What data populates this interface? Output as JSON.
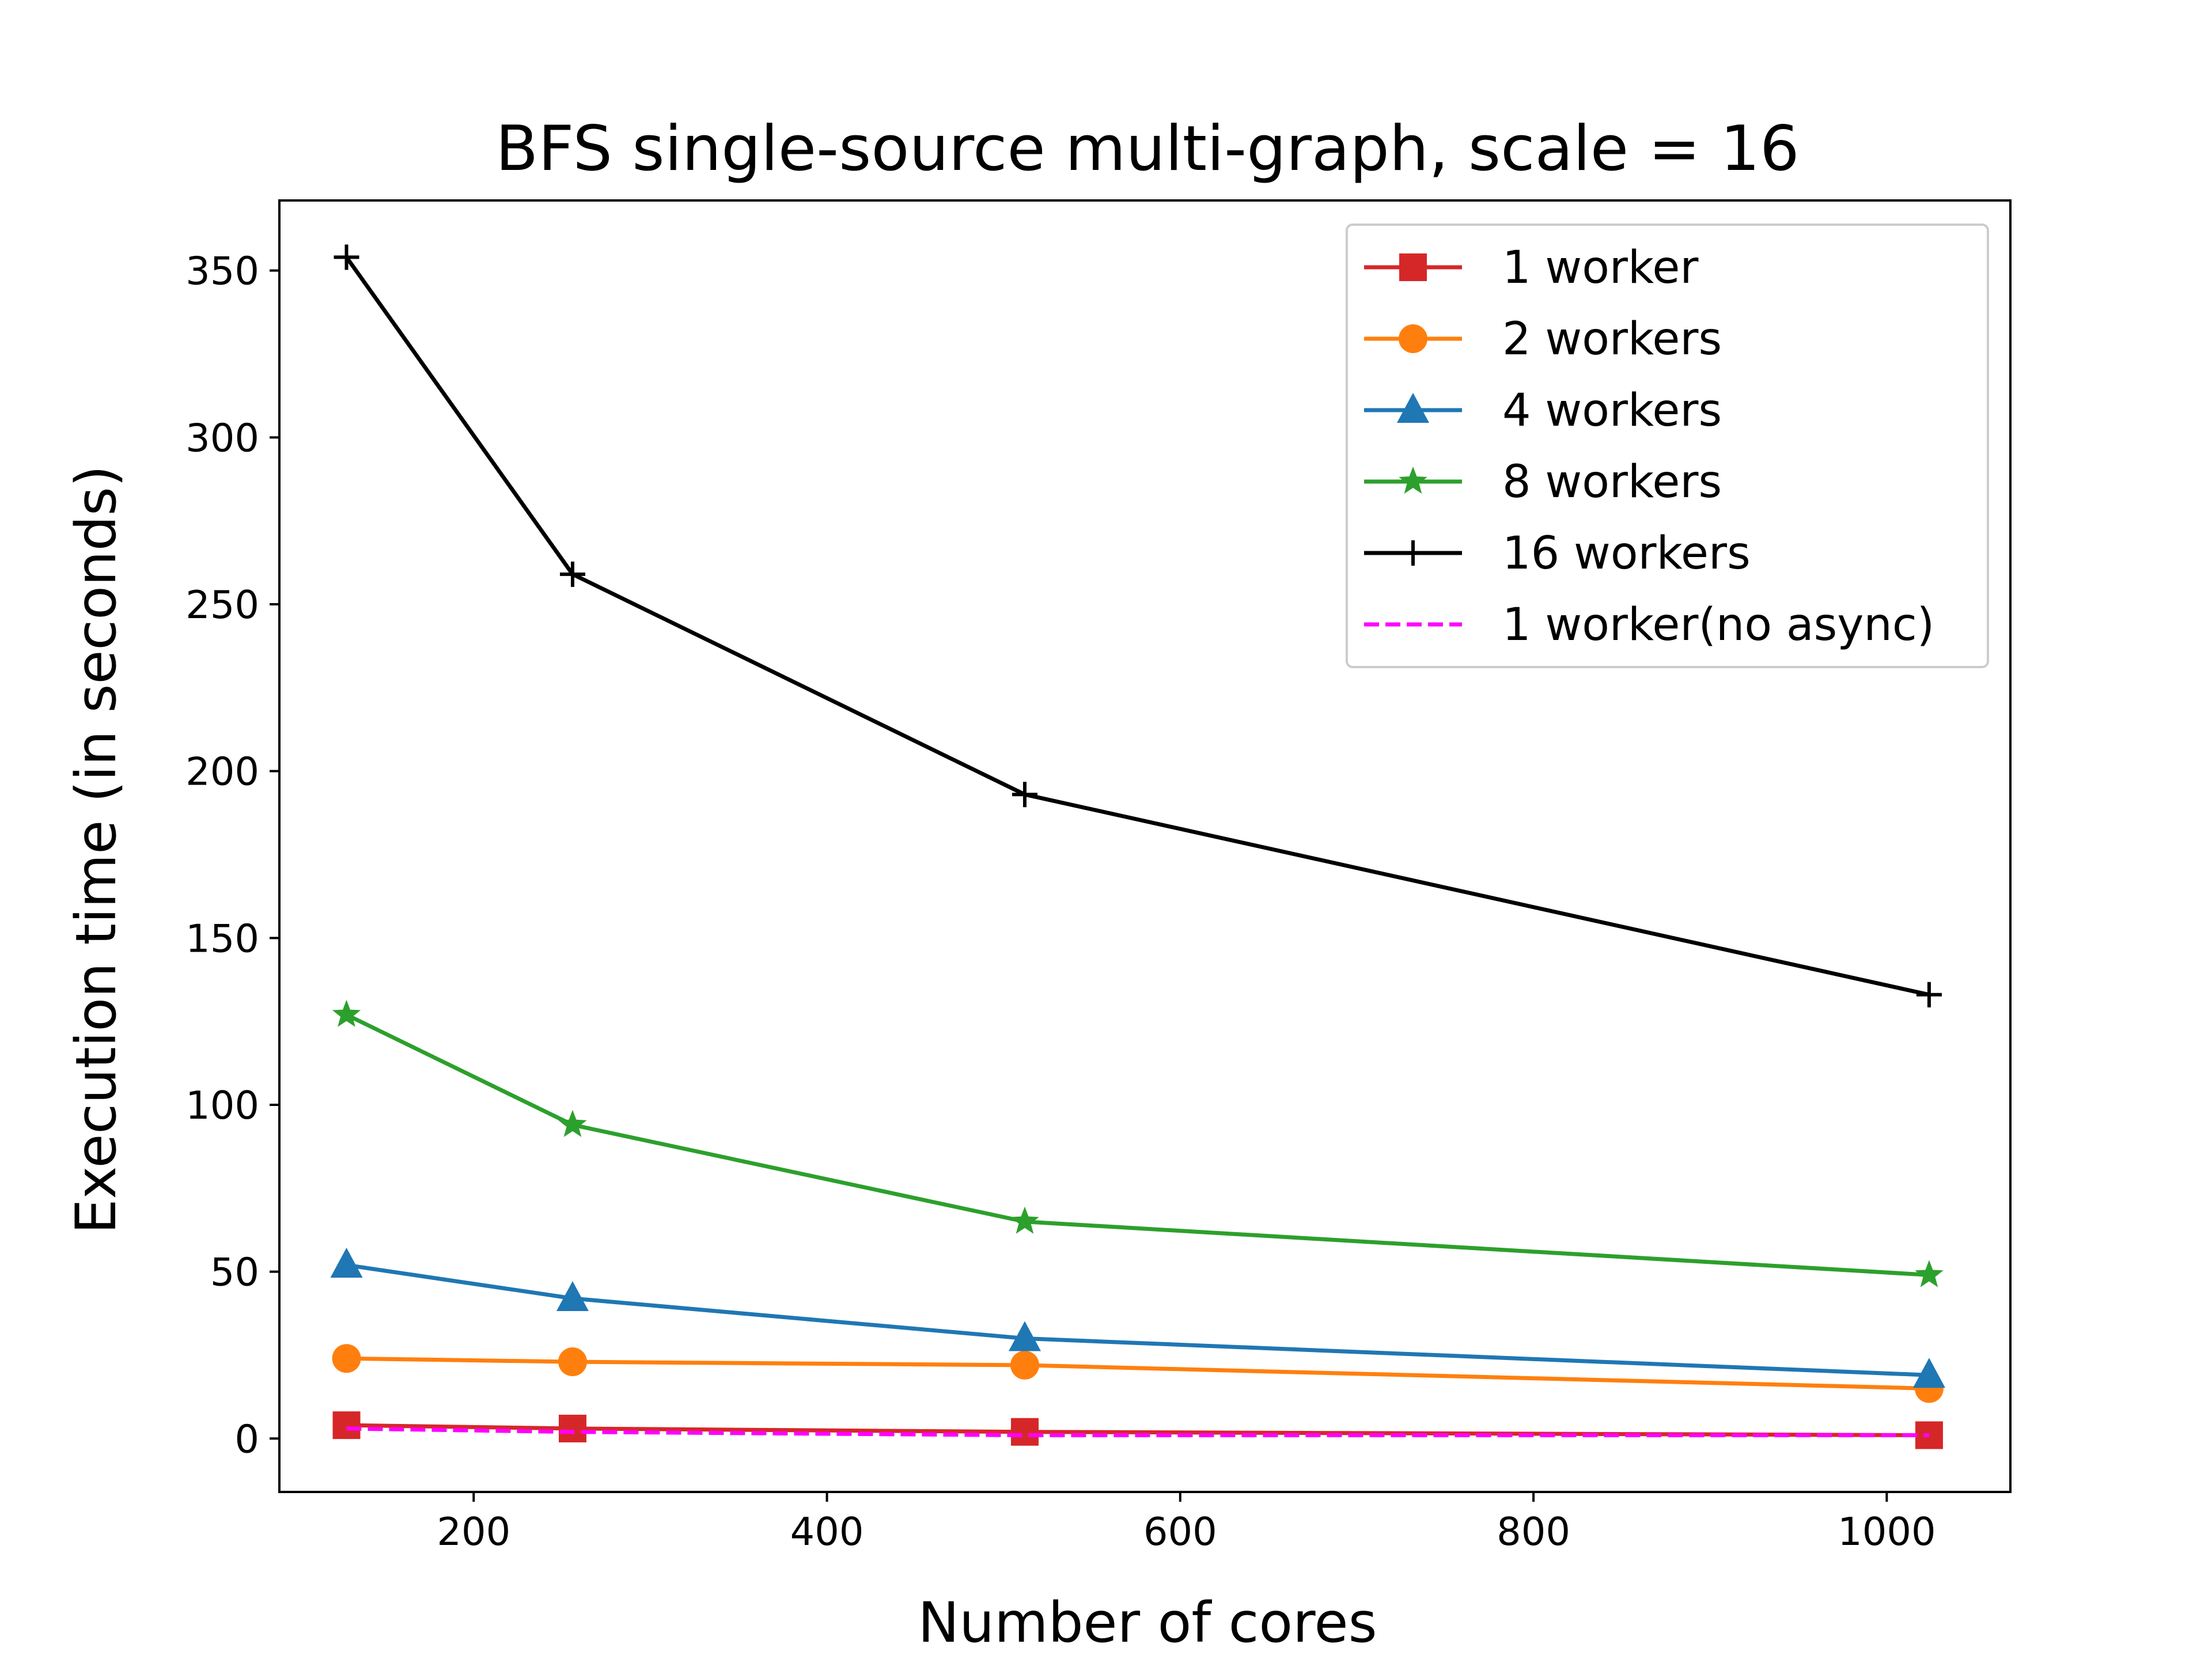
{
  "chart_data": {
    "type": "line",
    "title": "BFS single-source multi-graph, scale = 16",
    "xlabel": "Number of cores",
    "ylabel": "Execution time (in seconds)",
    "x": [
      128,
      256,
      512,
      1024
    ],
    "xlim": [
      90,
      1070
    ],
    "ylim": [
      -16,
      371
    ],
    "xticks": [
      200,
      400,
      600,
      800,
      1000
    ],
    "yticks": [
      0,
      50,
      100,
      150,
      200,
      250,
      300,
      350
    ],
    "xtick_labels": [
      "200",
      "400",
      "600",
      "800",
      "1000"
    ],
    "ytick_labels": [
      "0",
      "50",
      "100",
      "150",
      "200",
      "250",
      "300",
      "350"
    ],
    "grid": false,
    "legend_position": "top-right",
    "series": [
      {
        "name": "1 worker",
        "values": [
          4,
          3,
          2,
          1
        ],
        "color": "#d62728",
        "marker": "square",
        "dash": "solid"
      },
      {
        "name": "2 workers",
        "values": [
          24,
          23,
          22,
          15
        ],
        "color": "#ff7f0e",
        "marker": "circle",
        "dash": "solid"
      },
      {
        "name": "4 workers",
        "values": [
          52,
          42,
          30,
          19
        ],
        "color": "#1f77b4",
        "marker": "triangle",
        "dash": "solid"
      },
      {
        "name": "8 workers",
        "values": [
          127,
          94,
          65,
          49
        ],
        "color": "#2ca02c",
        "marker": "star",
        "dash": "solid"
      },
      {
        "name": "16 workers",
        "values": [
          354,
          259,
          193,
          133
        ],
        "color": "#000000",
        "marker": "plus",
        "dash": "solid"
      },
      {
        "name": "1 worker(no async)",
        "values": [
          3,
          2,
          1,
          1
        ],
        "color": "#ff00ff",
        "marker": "none",
        "dash": "dashed"
      }
    ]
  }
}
